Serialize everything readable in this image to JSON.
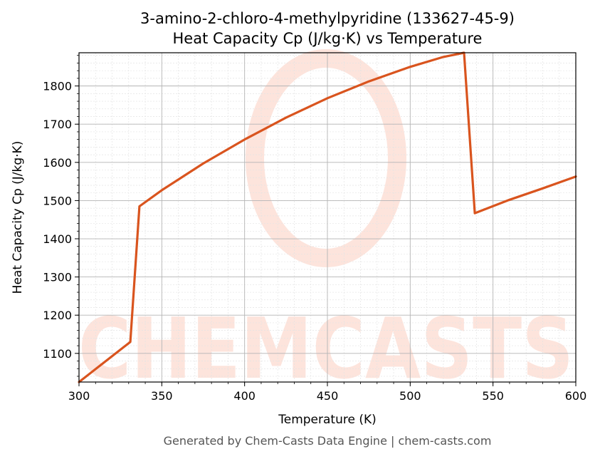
{
  "chart_data": {
    "type": "line",
    "title": "3-amino-2-chloro-4-methylpyridine (133627-45-9)",
    "subtitle": "Heat Capacity Cp (J/kg·K) vs Temperature",
    "xlabel": "Temperature (K)",
    "ylabel": "Heat Capacity Cp (J/kg·K)",
    "xlim": [
      300,
      600
    ],
    "ylim": [
      1025,
      1887
    ],
    "xticks": [
      300,
      350,
      400,
      450,
      500,
      550,
      600
    ],
    "yticks": [
      1100,
      1200,
      1300,
      1400,
      1500,
      1600,
      1700,
      1800
    ],
    "grid": true,
    "color": "#d9541e",
    "x": [
      300,
      331,
      336.5,
      350,
      375,
      400,
      425,
      450,
      475,
      500,
      520,
      532.5,
      539,
      560,
      580,
      600
    ],
    "y": [
      1025,
      1130,
      1485,
      1527,
      1597,
      1660,
      1717,
      1768,
      1812,
      1850,
      1876,
      1887,
      1467,
      1502,
      1532,
      1563
    ]
  },
  "watermark": {
    "text": "CHEMCASTS",
    "color": "#fde4dc"
  },
  "footer": "Generated by Chem-Casts Data Engine | chem-casts.com"
}
